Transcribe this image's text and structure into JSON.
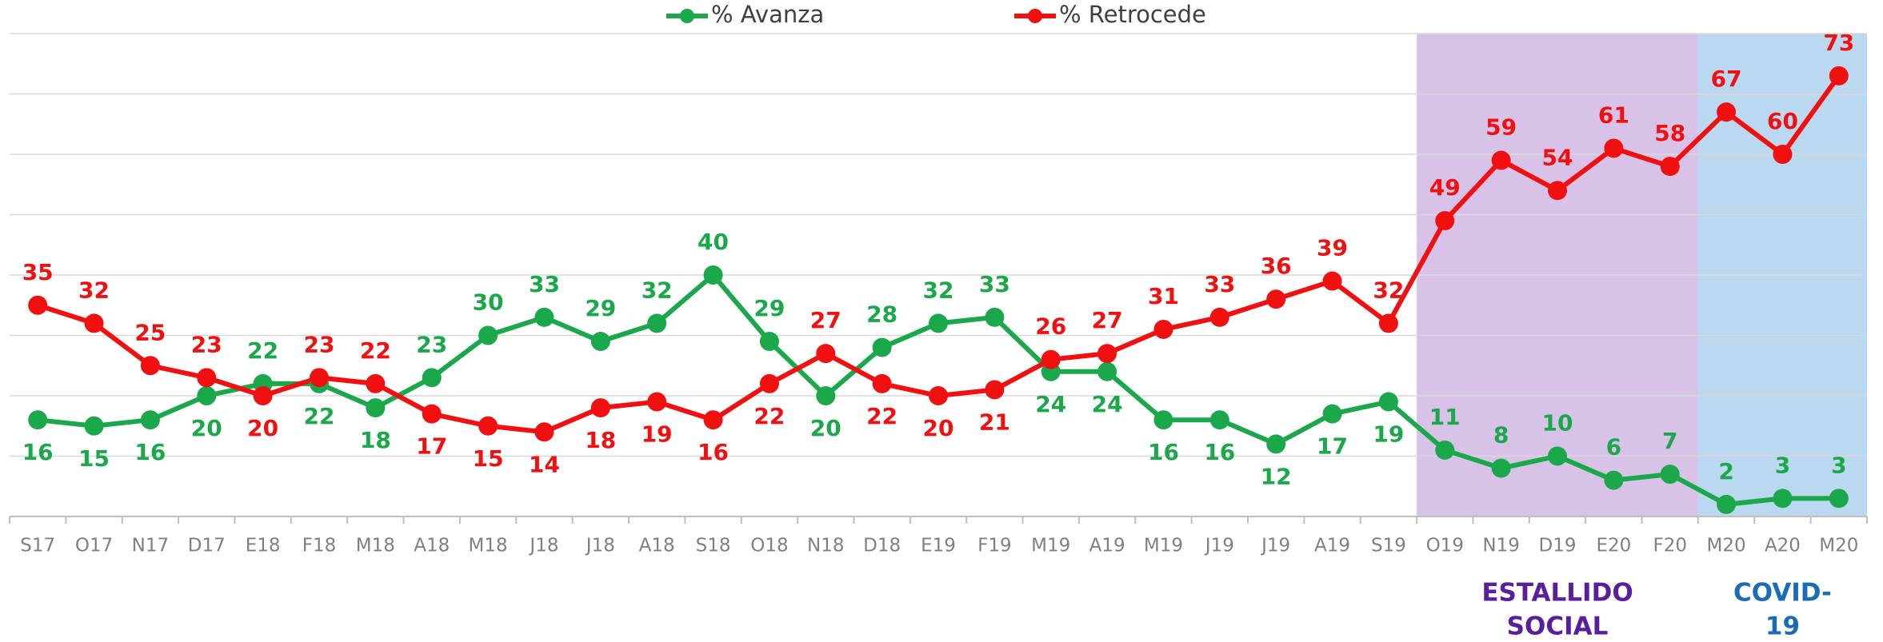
{
  "chart_data": {
    "type": "line",
    "categories": [
      "S17",
      "O17",
      "N17",
      "D17",
      "E18",
      "F18",
      "M18",
      "A18",
      "M18",
      "J18",
      "J18",
      "A18",
      "S18",
      "O18",
      "N18",
      "D18",
      "E19",
      "F19",
      "M19",
      "A19",
      "M19",
      "J19",
      "J19",
      "A19",
      "S19",
      "O19",
      "N19",
      "D19",
      "E20",
      "F20",
      "M20",
      "A20",
      "M20"
    ],
    "series": [
      {
        "name": "% Avanza",
        "color": "#1aa84a",
        "values": [
          16,
          15,
          16,
          20,
          22,
          22,
          18,
          23,
          30,
          33,
          29,
          32,
          40,
          29,
          20,
          28,
          32,
          33,
          24,
          24,
          16,
          16,
          12,
          17,
          19,
          11,
          8,
          10,
          6,
          7,
          2,
          3,
          3
        ]
      },
      {
        "name": "% Retrocede",
        "color": "#f01010",
        "values": [
          35,
          32,
          25,
          23,
          20,
          23,
          22,
          17,
          15,
          14,
          18,
          19,
          16,
          22,
          27,
          22,
          20,
          21,
          26,
          27,
          31,
          33,
          36,
          39,
          32,
          49,
          59,
          54,
          61,
          58,
          67,
          60,
          73
        ]
      }
    ],
    "ylim": [
      0,
      80
    ],
    "yticks": [
      0,
      10,
      20,
      30,
      40,
      50,
      60,
      70,
      80
    ],
    "grid": true,
    "annotations": [
      {
        "label": [
          "ESTALLIDO",
          "SOCIAL"
        ],
        "start": 25,
        "end": 29,
        "color": "#d8c2e8",
        "text_color": "#5a1d9e"
      },
      {
        "label": [
          "COVID-",
          "19"
        ],
        "start": 30,
        "end": 32,
        "color": "#bad8ef",
        "text_color": "#1a6bb8"
      }
    ]
  }
}
